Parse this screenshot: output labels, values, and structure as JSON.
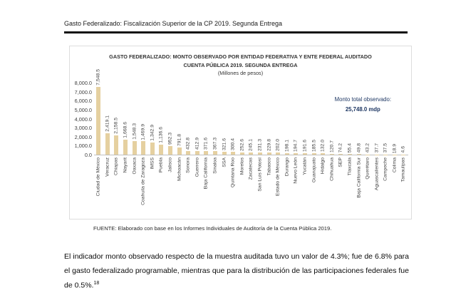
{
  "header": {
    "title": "Gasto Federalizado: Fiscalización Superior de la CP 2019. Segunda Entrega"
  },
  "chart": {
    "title_line1": "GASTO FEDERALIZADO: MONTO OBSERVADO POR ENTIDAD FEDERATIVA Y ENTE FEDERAL AUDITADO",
    "title_line2": "CUENTA PÚBLICA 2019. SEGUNDA ENTREGA",
    "subtitle": "(Millones de pesos)",
    "annotation_label": "Monto total observado:",
    "annotation_value": "25,748.0 mdp",
    "source": "FUENTE: Elaborado con base en los Informes Individuales de Auditoría de la Cuenta Pública 2019."
  },
  "chart_data": {
    "type": "bar",
    "title": "GASTO FEDERALIZADO: MONTO OBSERVADO POR ENTIDAD FEDERATIVA Y ENTE FEDERAL AUDITADO CUENTA PÚBLICA 2019. SEGUNDA ENTREGA",
    "units": "Millones de pesos",
    "categories": [
      "Ciudad de México",
      "Veracruz",
      "Chiapas",
      "Nayarit",
      "Oaxaca",
      "Coahuila de Zaragoza",
      "IMSS",
      "Puebla",
      "Jalisco",
      "Michoacán",
      "Sonora",
      "Guerrero",
      "Baja California",
      "Sinaloa",
      "SSA",
      "Quintana Roo",
      "Morelos",
      "Zacatecas",
      "San Luis Potosí",
      "Tabasco",
      "Estado de México",
      "Durango",
      "Nuevo León",
      "Yucatán",
      "Guanajuato",
      "Hidalgo",
      "Chihuahua",
      "SEP",
      "Tlaxcala",
      "Baja California Sur",
      "Querétaro",
      "Aguascalientes",
      "Campeche",
      "Colima",
      "Tamaulipas"
    ],
    "values": [
      7548.5,
      2419.1,
      2158.5,
      1668.6,
      1548.3,
      1469.9,
      1342.9,
      1136.6,
      952.3,
      791.8,
      432.8,
      412.9,
      371.6,
      367.3,
      321.6,
      300.4,
      252.6,
      245.1,
      231.3,
      229.8,
      202.0,
      198.1,
      194.7,
      191.6,
      185.5,
      132.0,
      120.7,
      74.2,
      55.4,
      49.8,
      43.2,
      37.7,
      37.5,
      18.9,
      4.6
    ],
    "total_annotation": "Monto total observado: 25,748.0 mdp",
    "ylim": [
      0,
      8000
    ],
    "y_ticks": [
      "8,000.0",
      "7,000.0",
      "6,000.0",
      "5,000.0",
      "4,000.0",
      "3,000.0",
      "2,000.0",
      "1,000.0",
      "0.0"
    ],
    "bar_color": "#e5d0a0",
    "grid": false,
    "legend": false,
    "data_labels_rotated": true
  },
  "paragraph": {
    "text": "El indicador monto observado respecto de la muestra auditada tuvo un valor de 4.3%; fue de 6.8% para el gasto federalizado programable, mientras que para la distribución de las participaciones federales fue de 0.5%.",
    "footnote_ref": "18"
  }
}
